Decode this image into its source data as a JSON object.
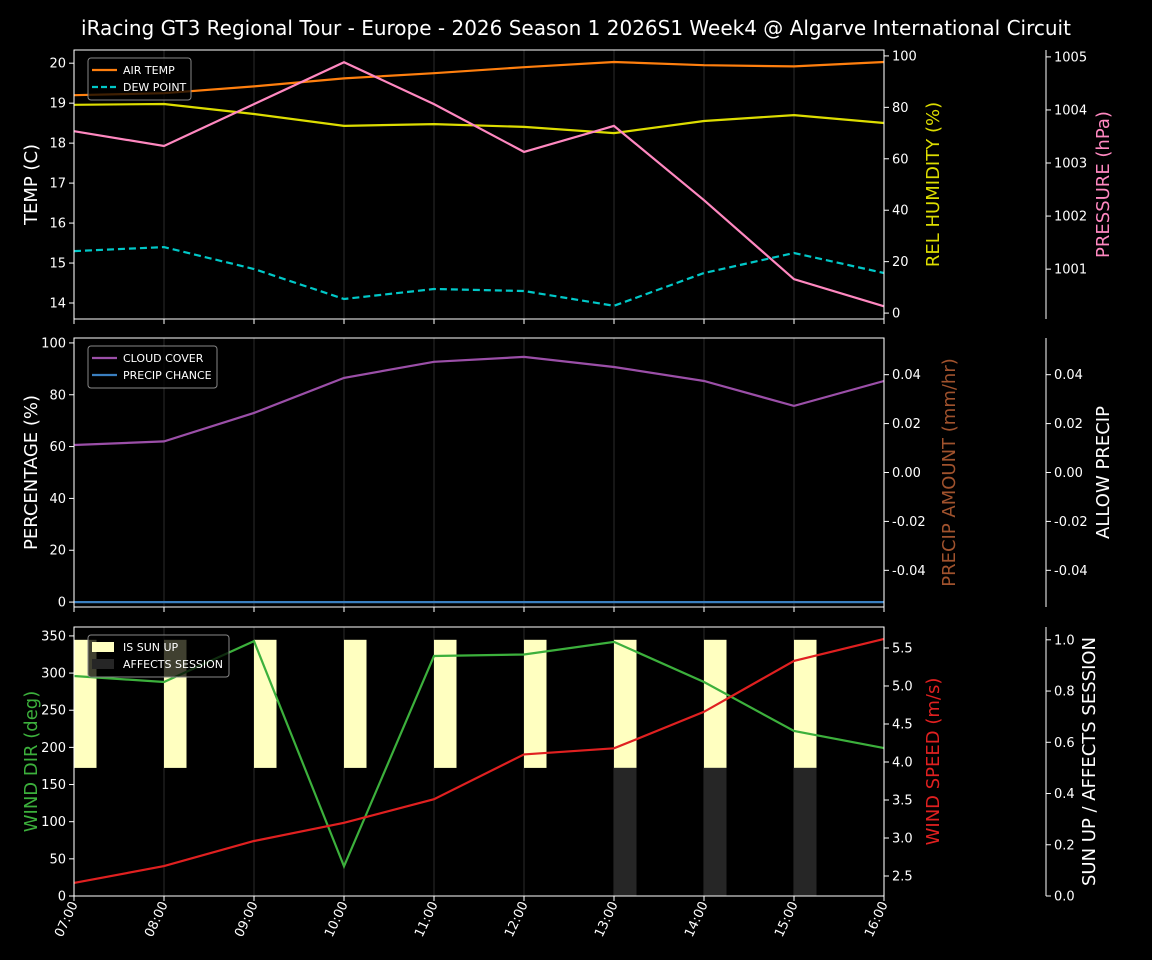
{
  "chart_data": {
    "title": "iRacing GT3 Regional Tour - Europe - 2026 Season 1 2026S1 Week4 @ Algarve International Circuit",
    "x": [
      "07:00",
      "08:00",
      "09:00",
      "10:00",
      "11:00",
      "12:00",
      "13:00",
      "14:00",
      "15:00",
      "16:00"
    ],
    "panels": [
      {
        "type": "line",
        "axes": [
          {
            "label": "TEMP (C)",
            "color": "#ffffff",
            "side": "left",
            "ylim": [
              13.6,
              20.33
            ],
            "ticks": [
              14,
              15,
              16,
              17,
              18,
              19,
              20
            ]
          },
          {
            "label": "REL HUMIDITY (%)",
            "color": "#dddd00",
            "side": "right",
            "ylim": [
              -2.3,
              102.3
            ],
            "ticks": [
              0,
              20,
              40,
              60,
              80,
              100
            ]
          },
          {
            "label": "PRESSURE (hPa)",
            "color": "#ff88c0",
            "side": "right-outer",
            "ylim": [
              1000.06,
              1005.13
            ],
            "ticks": [
              1001,
              1002,
              1003,
              1004,
              1005
            ]
          }
        ],
        "series": [
          {
            "name": "AIR TEMP",
            "axis": 0,
            "color": "#ff7f0e",
            "dash": false,
            "values": [
              19.2,
              19.25,
              19.42,
              19.62,
              19.75,
              19.9,
              20.03,
              19.95,
              19.92,
              20.03
            ]
          },
          {
            "name": "DEW POINT",
            "axis": 0,
            "color": "#00c8c8",
            "dash": true,
            "values": [
              15.3,
              15.4,
              14.85,
              14.1,
              14.35,
              14.3,
              13.93,
              14.75,
              15.25,
              14.75
            ]
          },
          {
            "axis": 1,
            "color": "#dddd00",
            "dash": false,
            "values": [
              81,
              81.3,
              77.4,
              72.8,
              73.5,
              72.4,
              70,
              74.7,
              77,
              73.9
            ]
          },
          {
            "axis": 2,
            "color": "#ff88c0",
            "dash": false,
            "values": [
              1003.6,
              1003.32,
              1004.11,
              1004.9,
              1004.11,
              1003.21,
              1003.7,
              1002.3,
              1000.81,
              1000.3
            ]
          }
        ],
        "legend": "top-left"
      },
      {
        "type": "line",
        "axes": [
          {
            "label": "PERCENTAGE (%)",
            "color": "#ffffff",
            "side": "left",
            "ylim": [
              -1.9,
              101.9
            ],
            "ticks": [
              0,
              20,
              40,
              60,
              80,
              100
            ]
          },
          {
            "label": "PRECIP AMOUNT (mm/hr)",
            "color": "#a0522d",
            "side": "right",
            "ylim": [
              -0.055,
              0.055
            ],
            "ticks": [
              -0.04,
              -0.02,
              0.0,
              0.02,
              0.04
            ]
          },
          {
            "label": "ALLOW PRECIP",
            "color": "#ffffff",
            "side": "right-outer",
            "ylim": [
              -0.055,
              0.055
            ],
            "ticks": [
              -0.04,
              -0.02,
              0.0,
              0.02,
              0.04
            ]
          }
        ],
        "series": [
          {
            "name": "CLOUD COVER",
            "axis": 0,
            "color": "#9b4fa8",
            "dash": false,
            "values": [
              60.6,
              62,
              73,
              86.5,
              92.7,
              94.6,
              90.7,
              85.3,
              75.7,
              85.3
            ]
          },
          {
            "name": "PRECIP CHANCE",
            "axis": 0,
            "color": "#3a7fc0",
            "dash": false,
            "values": [
              0,
              0,
              0,
              0,
              0,
              0,
              0,
              0,
              0,
              0
            ]
          }
        ],
        "legend": "top-left"
      },
      {
        "type": "line+bar",
        "axes": [
          {
            "label": "WIND DIR (deg)",
            "color": "#3cb03c",
            "side": "left",
            "ylim": [
              0,
              362
            ],
            "ticks": [
              0,
              50,
              100,
              150,
              200,
              250,
              300,
              350
            ]
          },
          {
            "label": "WIND SPEED (m/s)",
            "color": "#e02020",
            "side": "right",
            "ylim": [
              2.237,
              5.776
            ],
            "ticks": [
              2.5,
              3.0,
              3.5,
              4.0,
              4.5,
              5.0,
              5.5
            ]
          },
          {
            "label": "SUN UP / AFFECTS SESSION",
            "color": "#ffffff",
            "side": "right-outer",
            "ylim": [
              0,
              1.05
            ],
            "ticks": [
              0.0,
              0.2,
              0.4,
              0.6,
              0.8,
              1.0
            ]
          }
        ],
        "series": [
          {
            "axis": 0,
            "color": "#3cb03c",
            "dash": false,
            "values": [
              296,
              288,
              343,
              40,
              323,
              325,
              342,
              288,
              222,
              199
            ]
          },
          {
            "axis": 1,
            "color": "#e02020",
            "dash": false,
            "values": [
              2.41,
              2.63,
              2.96,
              3.2,
              3.51,
              4.1,
              4.18,
              4.66,
              5.33,
              5.62
            ]
          }
        ],
        "bars": [
          {
            "name": "IS SUN UP",
            "axis": 2,
            "color": "#ffffc0",
            "range": [
              0.5,
              1.0
            ],
            "values": [
              1,
              1,
              1,
              1,
              1,
              1,
              1,
              1,
              1,
              0
            ]
          },
          {
            "name": "AFFECTS SESSION",
            "axis": 2,
            "color": "#262626",
            "range": [
              0.0,
              0.5
            ],
            "values": [
              0,
              0,
              0,
              0,
              0,
              0,
              1,
              1,
              1,
              0
            ]
          }
        ],
        "legend": "top-left"
      }
    ]
  }
}
